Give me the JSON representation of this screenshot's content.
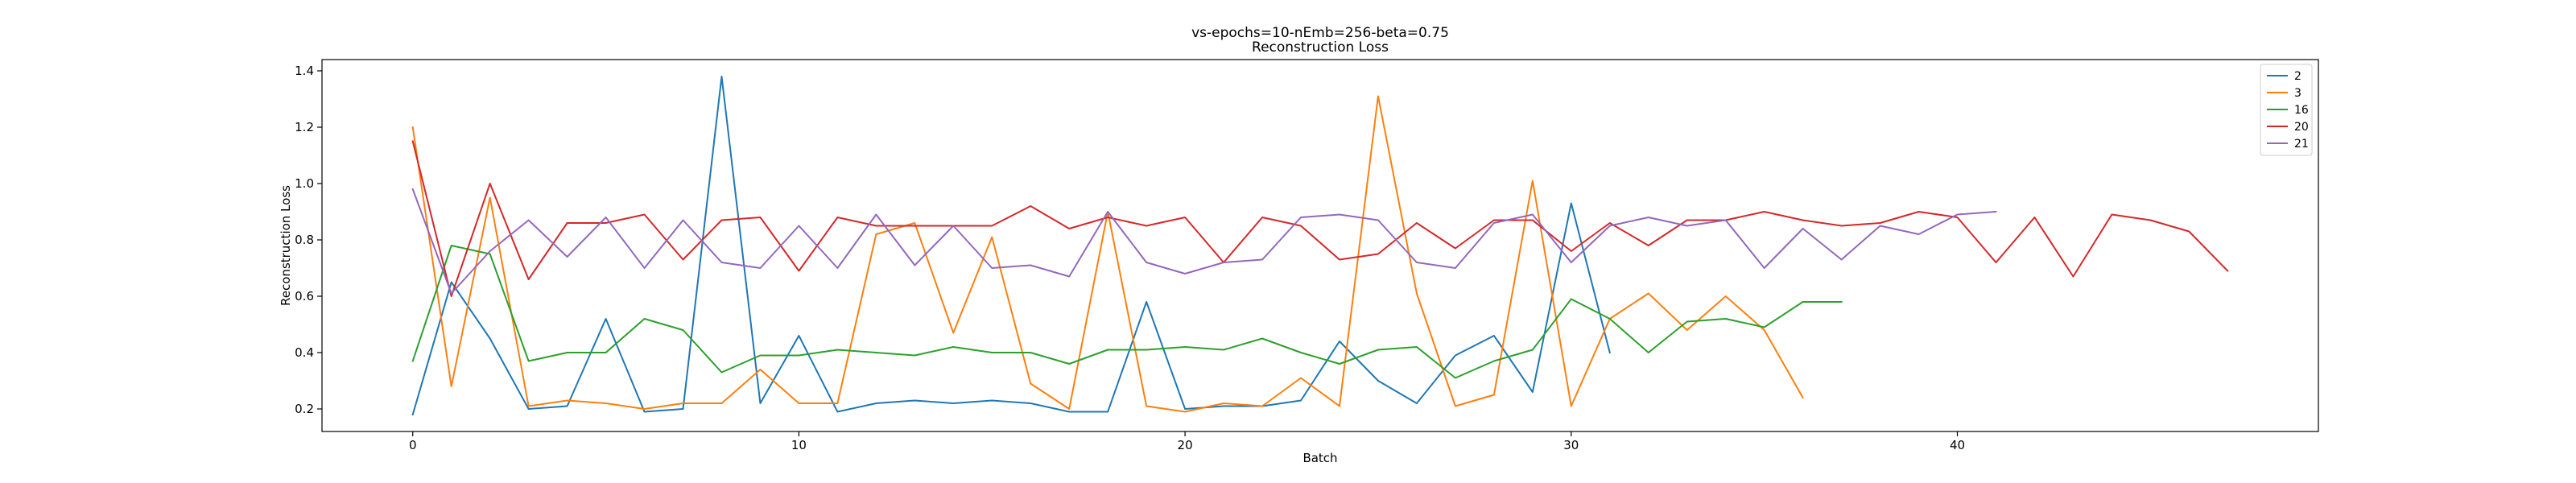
{
  "chart_data": {
    "type": "line",
    "title": "vs-epochs=10-nEmb=256-beta=0.75",
    "subtitle": "Reconstruction Loss",
    "xlabel": "Batch",
    "ylabel": "Reconstruction Loss",
    "xlim": [
      -2.35,
      49.35
    ],
    "ylim": [
      0.12,
      1.44
    ],
    "xticks": [
      0,
      10,
      20,
      30,
      40
    ],
    "yticks": [
      0.2,
      0.4,
      0.6,
      0.8,
      1.0,
      1.2,
      1.4
    ],
    "ytick_labels": [
      "0.2",
      "0.4",
      "0.6",
      "0.8",
      "1.0",
      "1.2",
      "1.4"
    ],
    "grid": false,
    "legend_position": "top-right",
    "series": [
      {
        "name": "2",
        "color": "#1f77b4",
        "values": [
          0.18,
          0.65,
          0.45,
          0.2,
          0.21,
          0.52,
          0.19,
          0.2,
          1.38,
          0.22,
          0.46,
          0.19,
          0.22,
          0.23,
          0.22,
          0.23,
          0.22,
          0.19,
          0.19,
          0.58,
          0.2,
          0.21,
          0.21,
          0.23,
          0.44,
          0.3,
          0.22,
          0.39,
          0.46,
          0.26,
          0.93,
          0.4
        ]
      },
      {
        "name": "3",
        "color": "#ff7f0e",
        "values": [
          1.2,
          0.28,
          0.95,
          0.21,
          0.23,
          0.22,
          0.2,
          0.22,
          0.22,
          0.34,
          0.22,
          0.22,
          0.82,
          0.86,
          0.47,
          0.81,
          0.29,
          0.2,
          0.9,
          0.21,
          0.19,
          0.22,
          0.21,
          0.31,
          0.21,
          1.31,
          0.61,
          0.21,
          0.25,
          1.01,
          0.21,
          0.52,
          0.61,
          0.48,
          0.6,
          0.48,
          0.24
        ]
      },
      {
        "name": "16",
        "color": "#2ca02c",
        "values": [
          0.37,
          0.78,
          0.75,
          0.37,
          0.4,
          0.4,
          0.52,
          0.48,
          0.33,
          0.39,
          0.39,
          0.41,
          0.4,
          0.39,
          0.42,
          0.4,
          0.4,
          0.36,
          0.41,
          0.41,
          0.42,
          0.41,
          0.45,
          0.4,
          0.36,
          0.41,
          0.42,
          0.31,
          0.37,
          0.41,
          0.59,
          0.52,
          0.4,
          0.51,
          0.52,
          0.49,
          0.58,
          0.58
        ]
      },
      {
        "name": "20",
        "color": "#d62728",
        "values": [
          1.15,
          0.6,
          1.0,
          0.66,
          0.86,
          0.86,
          0.89,
          0.73,
          0.87,
          0.88,
          0.69,
          0.88,
          0.85,
          0.85,
          0.85,
          0.85,
          0.92,
          0.84,
          0.88,
          0.85,
          0.88,
          0.72,
          0.88,
          0.85,
          0.73,
          0.75,
          0.86,
          0.77,
          0.87,
          0.87,
          0.76,
          0.86,
          0.78,
          0.87,
          0.87,
          0.9,
          0.87,
          0.85,
          0.86,
          0.9,
          0.88,
          0.72,
          0.88,
          0.67,
          0.89,
          0.87,
          0.83,
          0.69
        ]
      },
      {
        "name": "21",
        "color": "#9467bd",
        "values": [
          0.98,
          0.61,
          0.76,
          0.87,
          0.74,
          0.88,
          0.7,
          0.87,
          0.72,
          0.7,
          0.85,
          0.7,
          0.89,
          0.71,
          0.85,
          0.7,
          0.71,
          0.67,
          0.9,
          0.72,
          0.68,
          0.72,
          0.73,
          0.88,
          0.89,
          0.87,
          0.72,
          0.7,
          0.86,
          0.89,
          0.72,
          0.85,
          0.88,
          0.85,
          0.87,
          0.7,
          0.84,
          0.73,
          0.85,
          0.82,
          0.89,
          0.9
        ]
      }
    ]
  }
}
